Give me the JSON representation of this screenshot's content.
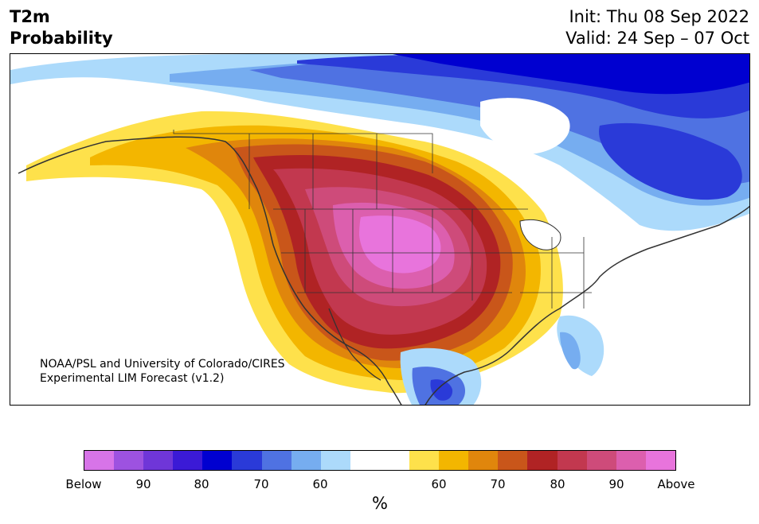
{
  "header": {
    "title_line1": "T2m",
    "title_line2": "Probability",
    "init": "Init: Thu 08 Sep 2022",
    "valid": "Valid: 24 Sep – 07 Oct"
  },
  "map": {
    "credit_line1": "NOAA/PSL and University of Colorado/CIRES",
    "credit_line2": "Experimental LIM Forecast (v1.2)"
  },
  "colorbar": {
    "colors": [
      "#d774e8",
      "#9d52e0",
      "#6f36d8",
      "#3b1ad6",
      "#0000d0",
      "#2a3ad8",
      "#4f72e2",
      "#76adf0",
      "#acdafb",
      "#ffffff",
      "#ffffff",
      "#fee14b",
      "#f3b600",
      "#e0860c",
      "#c9561a",
      "#b02324",
      "#c2384f",
      "#ce4b7a",
      "#dc5fae",
      "#e874dc"
    ],
    "tick_labels": [
      "Below",
      "90",
      "80",
      "70",
      "60",
      "60",
      "70",
      "80",
      "90",
      "Above"
    ],
    "unit_label": "%"
  }
}
